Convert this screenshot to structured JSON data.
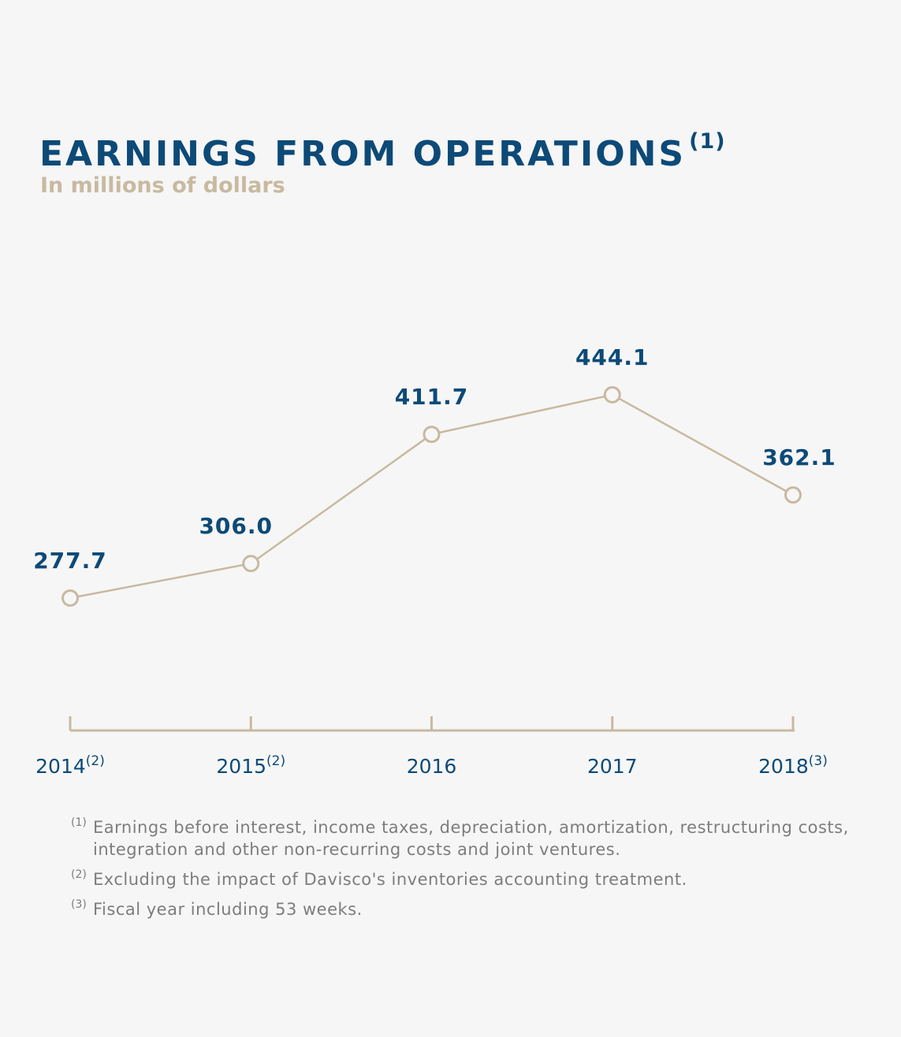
{
  "header": {
    "title": "EARNINGS FROM OPERATIONS",
    "title_mark": "(1)",
    "subtitle": "In millions of dollars"
  },
  "colors": {
    "title": "#0d4a77",
    "subtitle": "#c8b9a0",
    "line": "#c8b9a0",
    "value_label": "#0d4a77",
    "axis_label": "#0d4a77",
    "footnote": "#7d7d7d",
    "background": "#f6f6f6"
  },
  "chart_data": {
    "type": "line",
    "title": "EARNINGS FROM OPERATIONS",
    "categories": [
      "2014",
      "2015",
      "2016",
      "2017",
      "2018"
    ],
    "category_marks": [
      "(2)",
      "(2)",
      "",
      "",
      "(3)"
    ],
    "value_labels": [
      "277.7",
      "306.0",
      "411.7",
      "444.1",
      "362.1"
    ],
    "series": [
      {
        "values": [
          277.7,
          306.0,
          411.7,
          444.1,
          362.1
        ]
      }
    ],
    "ylabel": "In millions of dollars",
    "xlabel": "",
    "ylim": [
      200,
      500
    ],
    "grid": false,
    "legend": "none",
    "marker": "hollow-circle"
  },
  "footnotes": [
    {
      "mark": "(1)",
      "text": "Earnings before interest, income taxes, depreciation, amortization, restructuring costs, integration and other non-recurring costs and joint ventures."
    },
    {
      "mark": "(2)",
      "text": "Excluding the impact of Davisco's inventories accounting treatment."
    },
    {
      "mark": "(3)",
      "text": "Fiscal year including 53 weeks."
    }
  ]
}
